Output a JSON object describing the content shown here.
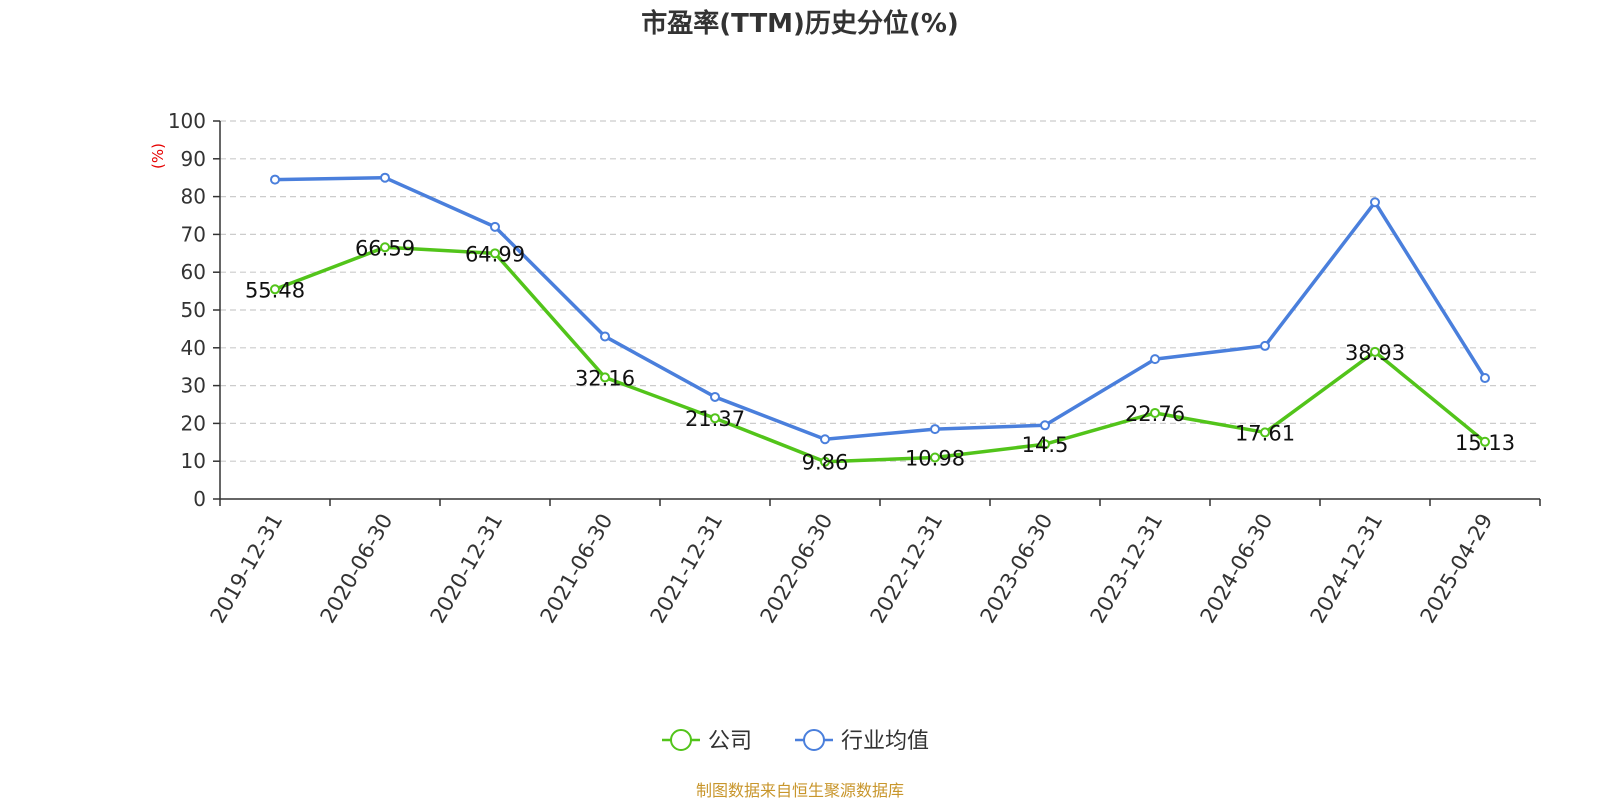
{
  "chart_data": {
    "type": "line",
    "title": "市盈率(TTM)历史分位(%)",
    "ylabel": "(%)",
    "ylim": [
      0,
      100
    ],
    "yticks": [
      0,
      10,
      20,
      30,
      40,
      50,
      60,
      70,
      80,
      90,
      100
    ],
    "categories": [
      "2019-12-31",
      "2020-06-30",
      "2020-12-31",
      "2021-06-30",
      "2021-12-31",
      "2022-06-30",
      "2022-12-31",
      "2023-06-30",
      "2023-12-31",
      "2024-06-30",
      "2024-12-31",
      "2025-04-29"
    ],
    "grid": true,
    "legend_position": "bottom-center",
    "series": [
      {
        "name": "公司",
        "color": "#52c41a",
        "values": [
          55.48,
          66.59,
          64.99,
          32.16,
          21.37,
          9.86,
          10.98,
          14.5,
          22.76,
          17.61,
          38.93,
          15.13
        ],
        "labels": [
          "55.48",
          "66.59",
          "64.99",
          "32.16",
          "21.37",
          "9.86",
          "10.98",
          "14.5",
          "22.76",
          "17.61",
          "38.93",
          "15.13"
        ]
      },
      {
        "name": "行业均值",
        "color": "#4a7fdc",
        "values": [
          84.5,
          85.0,
          72.0,
          43.0,
          27.0,
          15.8,
          18.5,
          19.5,
          37.0,
          40.5,
          78.5,
          32.0
        ]
      }
    ],
    "source": "制图数据来自恒生聚源数据库"
  }
}
